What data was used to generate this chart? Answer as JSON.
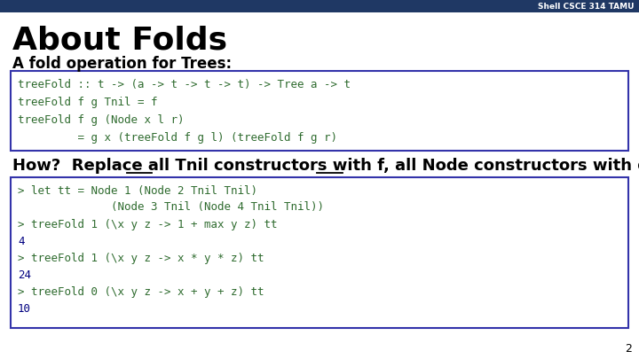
{
  "bg_color": "#ffffff",
  "header_bg": "#1f3864",
  "header_text": "Shell CSCE 314 TAMU",
  "header_text_color": "#ffffff",
  "title": "About Folds",
  "subtitle": "A fold operation for Trees:",
  "code_box1": [
    "treeFold :: t -> (a -> t -> t -> t) -> Tree a -> t",
    "treeFold f g Tnil = f",
    "treeFold f g (Node x l r)",
    "         = g x (treeFold f g l) (treeFold f g r)"
  ],
  "code_box2": [
    "> let tt = Node 1 (Node 2 Tnil Tnil)",
    "              (Node 3 Tnil (Node 4 Tnil Tnil))",
    "> treeFold 1 (\\x y z -> 1 + max y z) tt",
    "4",
    "> treeFold 1 (\\x y z -> x * y * z) tt",
    "24",
    "> treeFold 0 (\\x y z -> x + y + z) tt",
    "10"
  ],
  "code_box1_border": "#3333aa",
  "code_box2_border": "#3333aa",
  "code_bg": "#ffffff",
  "code_color": "#2e6b2e",
  "page_number": "2",
  "mono_color": "#2e6b2e",
  "result_color": "#000080",
  "title_color": "#000000",
  "subtitle_color": "#000000",
  "mid_text": "How?  Replace all Tnil constructors with f, all Node constructors with g.",
  "tnil_prefix": "How?  Replace all ",
  "tnil_word": "Tnil",
  "node_prefix": "How?  Replace all Tnil constructors with f, all ",
  "node_word": "Node"
}
